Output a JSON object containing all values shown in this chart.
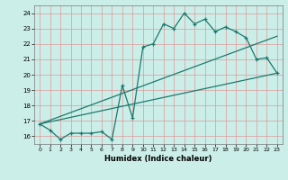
{
  "title": "",
  "xlabel": "Humidex (Indice chaleur)",
  "bg_color": "#cceee8",
  "grid_color": "#dd9999",
  "line_color": "#1a7a6e",
  "xlim": [
    -0.5,
    23.5
  ],
  "ylim": [
    15.5,
    24.5
  ],
  "xticks": [
    0,
    1,
    2,
    3,
    4,
    5,
    6,
    7,
    8,
    9,
    10,
    11,
    12,
    13,
    14,
    15,
    16,
    17,
    18,
    19,
    20,
    21,
    22,
    23
  ],
  "yticks": [
    16,
    17,
    18,
    19,
    20,
    21,
    22,
    23,
    24
  ],
  "line1_x": [
    0,
    1,
    2,
    3,
    4,
    5,
    6,
    7,
    8,
    9,
    10,
    11,
    12,
    13,
    14,
    15,
    16,
    17,
    18,
    19,
    20,
    21,
    22,
    23
  ],
  "line1_y": [
    16.8,
    16.4,
    15.8,
    16.2,
    16.2,
    16.2,
    16.3,
    15.8,
    19.3,
    17.2,
    21.8,
    22.0,
    23.3,
    23.0,
    24.0,
    23.3,
    23.6,
    22.8,
    23.1,
    22.8,
    22.4,
    21.0,
    21.1,
    20.1
  ],
  "line2_x": [
    0,
    23
  ],
  "line2_y": [
    16.8,
    22.5
  ],
  "line3_x": [
    0,
    23
  ],
  "line3_y": [
    16.8,
    20.1
  ]
}
